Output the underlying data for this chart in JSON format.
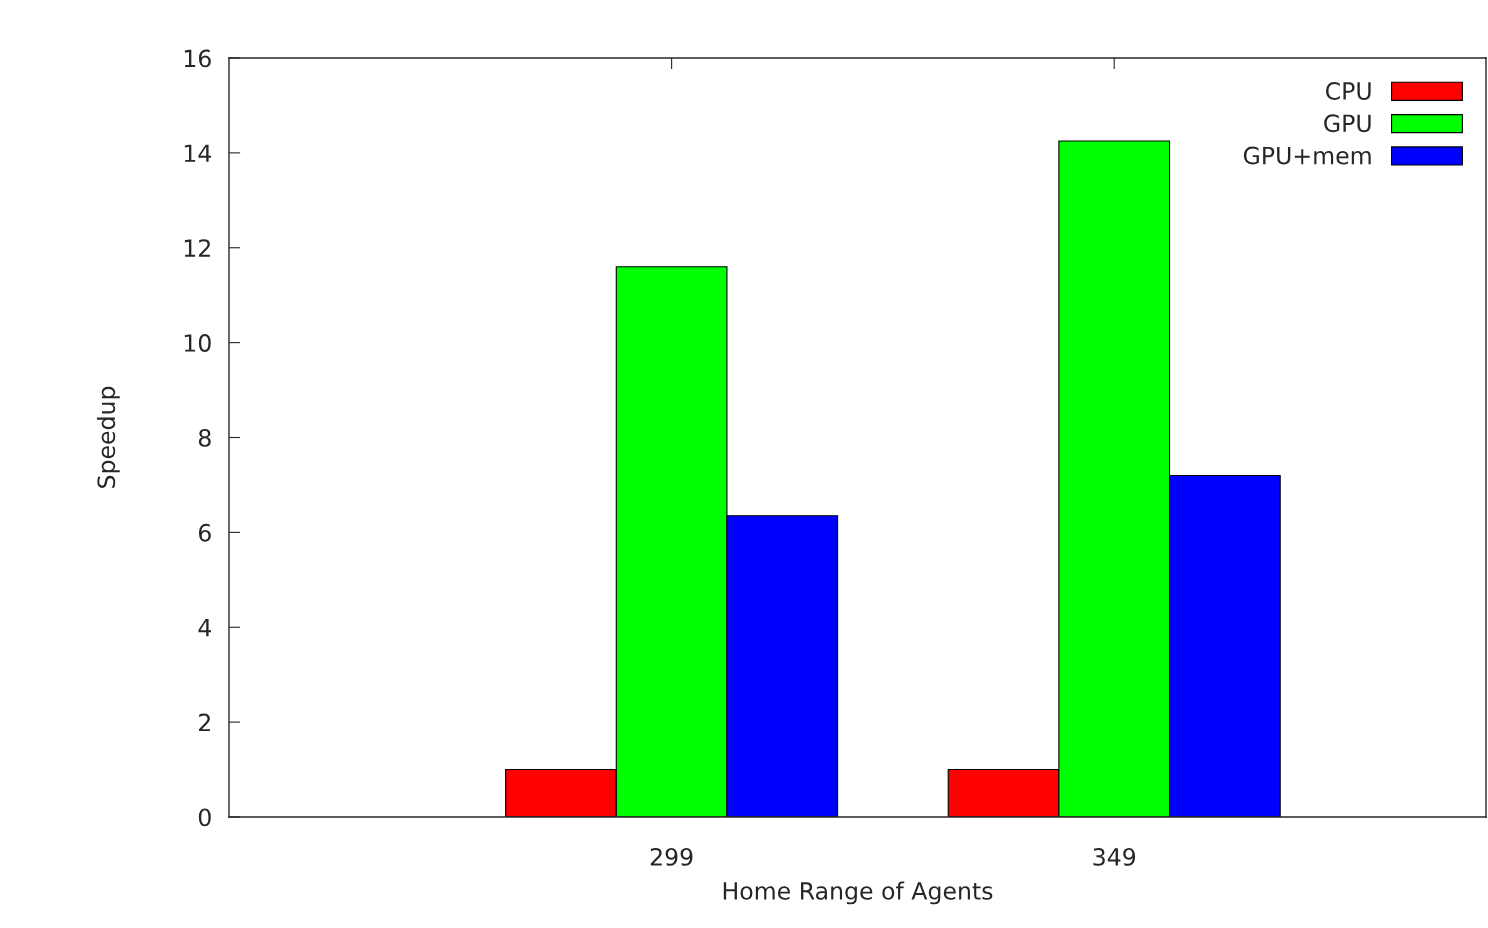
{
  "chart_data": {
    "type": "bar",
    "xlabel": "Home Range of Agents",
    "ylabel": "Speedup",
    "categories": [
      "299",
      "349"
    ],
    "series": [
      {
        "name": "CPU",
        "color": "#ff0000",
        "values": [
          1,
          1
        ]
      },
      {
        "name": "GPU",
        "color": "#00ff00",
        "values": [
          11.6,
          14.25
        ]
      },
      {
        "name": "GPU+mem",
        "color": "#0000ff",
        "values": [
          6.35,
          7.2
        ]
      }
    ],
    "ylim": [
      0,
      16
    ],
    "yticks": [
      0,
      2,
      4,
      6,
      8,
      10,
      12,
      14,
      16
    ],
    "grid": false,
    "legend": "top right"
  }
}
